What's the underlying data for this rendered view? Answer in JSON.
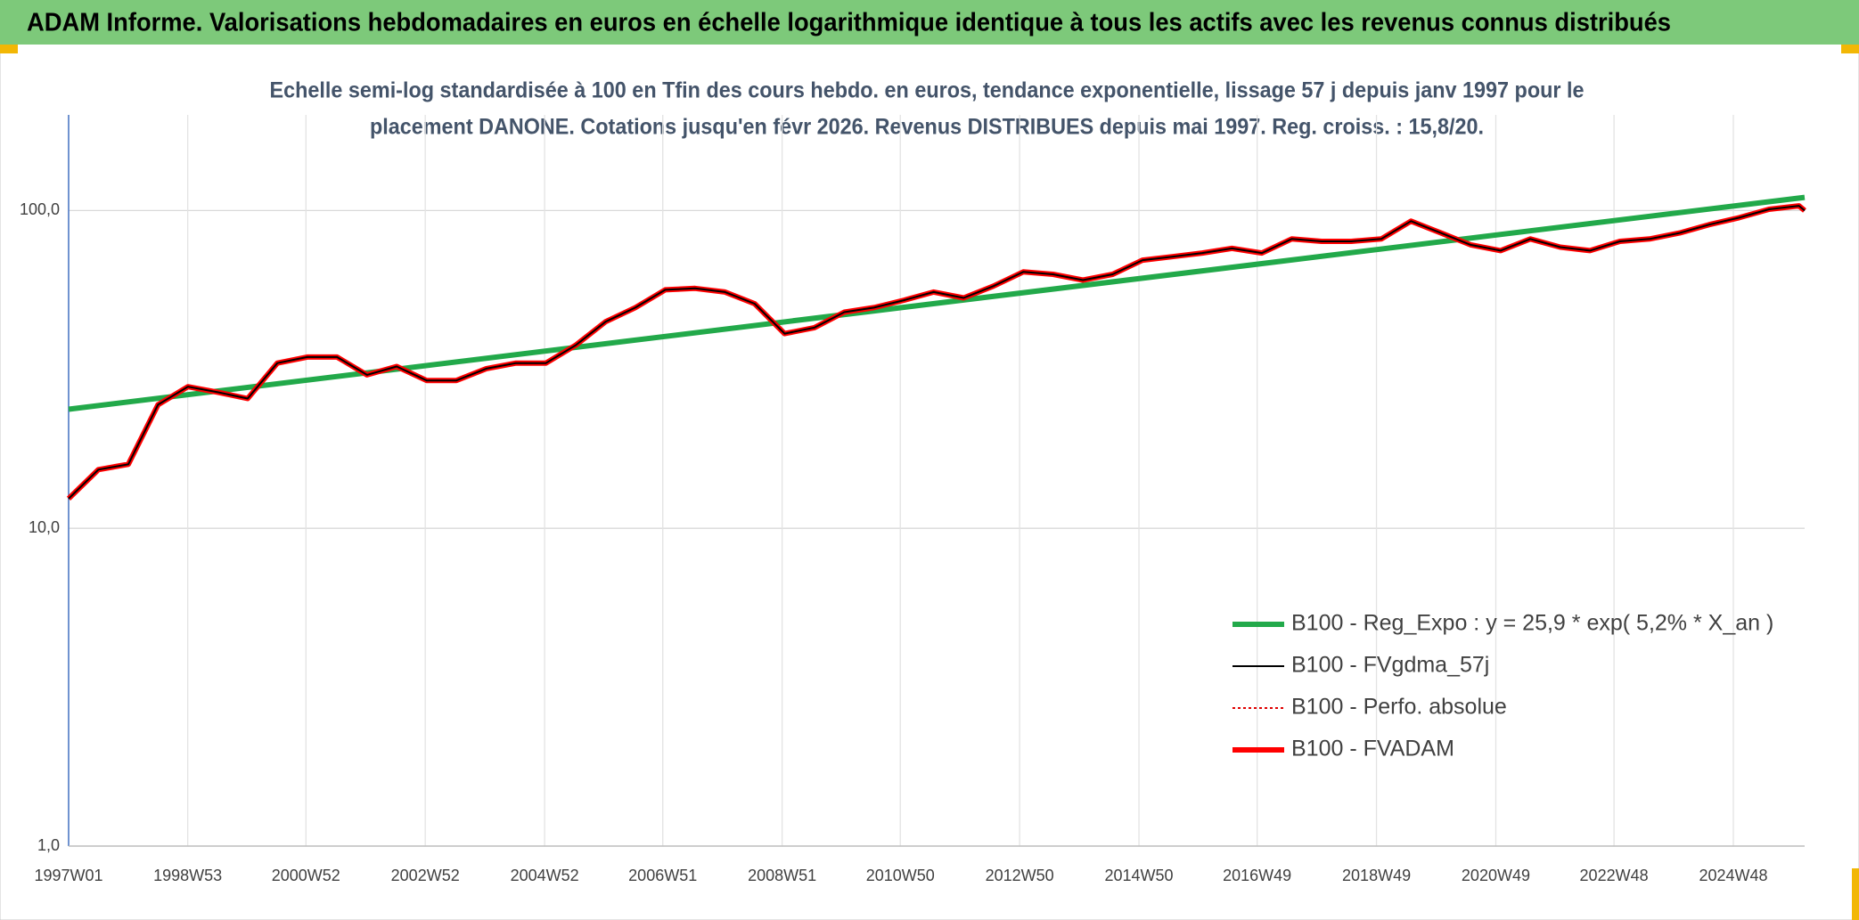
{
  "chart_data": {
    "type": "line",
    "page_title": "ADAM Informe. Valorisations hebdomadaires en euros en échelle logarithmique identique à tous les actifs avec les revenus connus distribués",
    "title": [
      "Echelle semi-log standardisée à 100 en Tfin des cours hebdo. en euros, tendance exponentielle, lissage 57 j depuis janv 1997 pour le",
      "placement DANONE. Cotations jusqu'en févr 2026. Revenus DISTRIBUES depuis mai 1997. Reg. croiss. : 15,8/20."
    ],
    "x": [
      "1997W01",
      "1997W27",
      "1998W01",
      "1998W27",
      "1999W01",
      "1999W27",
      "2000W01",
      "2000W27",
      "2001W01",
      "2001W27",
      "2002W01",
      "2002W27",
      "2003W01",
      "2003W27",
      "2004W01",
      "2004W27",
      "2005W01",
      "2005W27",
      "2006W01",
      "2006W27",
      "2007W01",
      "2007W27",
      "2008W01",
      "2008W27",
      "2009W01",
      "2009W27",
      "2010W01",
      "2010W27",
      "2011W01",
      "2011W27",
      "2012W01",
      "2012W27",
      "2013W01",
      "2013W27",
      "2014W01",
      "2014W27",
      "2015W01",
      "2015W27",
      "2016W01",
      "2016W27",
      "2017W01",
      "2017W27",
      "2018W01",
      "2018W27",
      "2019W01",
      "2019W27",
      "2020W01",
      "2020W27",
      "2021W01",
      "2021W27",
      "2022W01",
      "2022W27",
      "2023W01",
      "2023W27",
      "2024W01",
      "2024W27",
      "2025W01",
      "2025W27",
      "2026W01",
      "2026W06"
    ],
    "xlim": [
      "1997W01",
      "2026W06"
    ],
    "xticks": [
      "1997W01",
      "1998W53",
      "2000W52",
      "2002W52",
      "2004W52",
      "2006W51",
      "2008W51",
      "2010W50",
      "2012W50",
      "2014W50",
      "2016W49",
      "2018W49",
      "2020W49",
      "2022W48",
      "2024W48"
    ],
    "ylim": [
      1,
      200
    ],
    "yticks": [
      {
        "value": 1,
        "label": "1,0"
      },
      {
        "value": 10,
        "label": "10,0"
      },
      {
        "value": 100,
        "label": "100,0"
      }
    ],
    "log_y": true,
    "grid": true,
    "legend": "lower-right",
    "series": [
      {
        "name": "B100 - Reg_Expo : y = 25,9 * exp( 5,2% *  X_an )",
        "color": "#22a94a",
        "style": "solid",
        "x": [
          "1997W01",
          "2026W06"
        ],
        "values": [
          23.7,
          110
        ]
      },
      {
        "name": "B100 - FVgdma_57j",
        "color": "#000000",
        "style": "solid",
        "values": [
          12.4,
          15.3,
          15.9,
          24.5,
          27.9,
          26.8,
          25.6,
          33.1,
          34.6,
          34.6,
          30.4,
          32.3,
          29.2,
          29.2,
          31.8,
          33.1,
          33.1,
          37.7,
          44.7,
          49.5,
          56.3,
          56.9,
          55.4,
          50.9,
          41.0,
          42.8,
          47.9,
          49.5,
          52.2,
          55.4,
          53.1,
          57.8,
          64.1,
          63.0,
          60.4,
          63.0,
          69.8,
          71.6,
          73.5,
          76.0,
          73.5,
          81.4,
          80.0,
          80.0,
          81.4,
          92.6,
          85.0,
          78.0,
          74.8,
          81.4,
          76.7,
          74.8,
          80.0,
          81.4,
          85.0,
          90.3,
          95.0,
          100.9,
          103.5,
          100
        ]
      },
      {
        "name": "B100 - Perfo. absolue",
        "color": "#e00000",
        "style": "dotted",
        "values": [
          12.4,
          15.3,
          15.9,
          24.5,
          27.9,
          26.8,
          25.6,
          33.1,
          34.6,
          34.6,
          30.4,
          32.3,
          29.2,
          29.2,
          31.8,
          33.1,
          33.1,
          37.7,
          44.7,
          49.5,
          56.3,
          56.9,
          55.4,
          50.9,
          41.0,
          42.8,
          47.9,
          49.5,
          52.2,
          55.4,
          53.1,
          57.8,
          64.1,
          63.0,
          60.4,
          63.0,
          69.8,
          71.6,
          73.5,
          76.0,
          73.5,
          81.4,
          80.0,
          80.0,
          81.4,
          92.6,
          85.0,
          78.0,
          74.8,
          81.4,
          76.7,
          74.8,
          80.0,
          81.4,
          85.0,
          90.3,
          95.0,
          100.9,
          103.5,
          100
        ]
      },
      {
        "name": "B100 - FVADAM",
        "color": "#ff0000",
        "style": "solid",
        "values": [
          12.4,
          15.3,
          15.9,
          24.5,
          27.9,
          26.8,
          25.6,
          33.1,
          34.6,
          34.6,
          30.4,
          32.3,
          29.2,
          29.2,
          31.8,
          33.1,
          33.1,
          37.7,
          44.7,
          49.5,
          56.3,
          56.9,
          55.4,
          50.9,
          41.0,
          42.8,
          47.9,
          49.5,
          52.2,
          55.4,
          53.1,
          57.8,
          64.1,
          63.0,
          60.4,
          63.0,
          69.8,
          71.6,
          73.5,
          76.0,
          73.5,
          81.4,
          80.0,
          80.0,
          81.4,
          92.6,
          85.0,
          78.0,
          74.8,
          81.4,
          76.7,
          74.8,
          80.0,
          81.4,
          85.0,
          90.3,
          95.0,
          100.9,
          103.5,
          100
        ]
      }
    ]
  }
}
